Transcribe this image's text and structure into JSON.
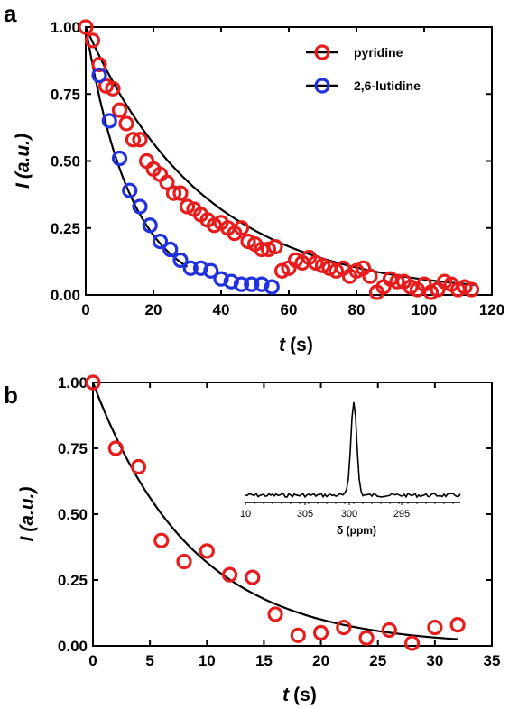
{
  "chart_data": [
    {
      "panel": "a",
      "type": "scatter",
      "xlabel_var": "t",
      "xlabel_unit": "(s)",
      "ylabel_var": "I",
      "ylabel_unit": "(a.u.)",
      "xlim": [
        0,
        120
      ],
      "ylim": [
        0,
        1.0
      ],
      "xticks": [
        "0",
        "20",
        "40",
        "60",
        "80",
        "100",
        "120"
      ],
      "yticks": [
        "0.00",
        "0.25",
        "0.50",
        "0.75",
        "1.00"
      ],
      "legend_position": "top-right",
      "series": [
        {
          "name": "pyridine",
          "color": "#e81c1c",
          "x": [
            0,
            2,
            4,
            6,
            8,
            10,
            12,
            14,
            16,
            18,
            20,
            22,
            24,
            26,
            28,
            30,
            32,
            34,
            36,
            38,
            40,
            42,
            44,
            46,
            48,
            50,
            52,
            54,
            56,
            58,
            60,
            62,
            64,
            66,
            68,
            70,
            72,
            74,
            76,
            78,
            80,
            82,
            84,
            86,
            88,
            90,
            92,
            94,
            96,
            98,
            100,
            102,
            104,
            106,
            108,
            110,
            112,
            114
          ],
          "y": [
            1.0,
            0.95,
            0.86,
            0.78,
            0.77,
            0.69,
            0.64,
            0.58,
            0.58,
            0.5,
            0.47,
            0.45,
            0.42,
            0.38,
            0.38,
            0.33,
            0.32,
            0.3,
            0.28,
            0.26,
            0.27,
            0.25,
            0.23,
            0.25,
            0.2,
            0.19,
            0.17,
            0.17,
            0.18,
            0.09,
            0.1,
            0.13,
            0.12,
            0.14,
            0.12,
            0.11,
            0.1,
            0.09,
            0.1,
            0.07,
            0.09,
            0.1,
            0.07,
            0.01,
            0.03,
            0.06,
            0.05,
            0.05,
            0.03,
            0.02,
            0.04,
            0.01,
            0.02,
            0.05,
            0.04,
            0.02,
            0.03,
            0.02
          ]
        },
        {
          "name": "2,6-lutidine",
          "color": "#2131e0",
          "x": [
            4,
            7,
            10,
            13,
            16,
            19,
            22,
            25,
            28,
            31,
            34,
            37,
            40,
            43,
            46,
            49,
            52,
            55
          ],
          "y": [
            0.82,
            0.65,
            0.51,
            0.39,
            0.33,
            0.26,
            0.2,
            0.17,
            0.13,
            0.1,
            0.1,
            0.09,
            0.06,
            0.05,
            0.04,
            0.04,
            0.04,
            0.03
          ]
        }
      ],
      "fit": {
        "label": "fit",
        "color": "#000000"
      }
    },
    {
      "panel": "b",
      "type": "scatter",
      "xlabel_var": "t",
      "xlabel_unit": "(s)",
      "ylabel_var": "I",
      "ylabel_unit": "(a.u.)",
      "xlim": [
        0,
        35
      ],
      "ylim": [
        0,
        1.0
      ],
      "xticks": [
        "0",
        "5",
        "10",
        "15",
        "20",
        "25",
        "30",
        "35"
      ],
      "yticks": [
        "0.00",
        "0.25",
        "0.50",
        "0.75",
        "1.00"
      ],
      "series": [
        {
          "name": "",
          "color": "#e81c1c",
          "x": [
            0,
            2,
            4,
            6,
            8,
            10,
            12,
            14,
            16,
            18,
            20,
            22,
            24,
            26,
            28,
            30,
            32
          ],
          "y": [
            1.0,
            0.75,
            0.68,
            0.4,
            0.32,
            0.36,
            0.27,
            0.26,
            0.12,
            0.04,
            0.05,
            0.07,
            0.03,
            0.06,
            0.01,
            0.07,
            0.08
          ]
        }
      ],
      "fit": {
        "label": "fit",
        "color": "#000000"
      },
      "inset": {
        "type": "line",
        "xlabel": "δ (ppm)",
        "xticks": [
          "10",
          "305",
          "300",
          "295"
        ],
        "peak_ppm": 300.4
      }
    }
  ]
}
